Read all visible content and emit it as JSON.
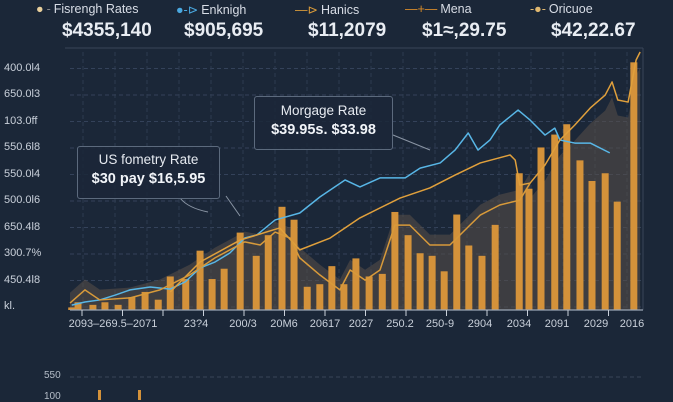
{
  "legend": [
    {
      "label": "Fisrengh Rates",
      "marker": "dot",
      "color": "#e8cf9c"
    },
    {
      "label": "Enknigh",
      "marker": "dot-arrow",
      "color": "#4aa8e0"
    },
    {
      "label": "Hanics",
      "marker": "line-arrow",
      "color": "#d89a3a"
    },
    {
      "label": "Mena",
      "marker": "plus",
      "color": "#d98c2a"
    },
    {
      "label": "Oricuoe",
      "marker": "dot-line",
      "color": "#e0b870"
    }
  ],
  "kpis": [
    "$4355,140",
    "$905,695",
    "$11,2079",
    "$1≈,29.75",
    "$42,22.67"
  ],
  "annotations": [
    {
      "title": "US fometry Rate",
      "value": "$30 pay $16,5.95"
    },
    {
      "title": "Morgage Rate",
      "value": "$39.95s. $33.98"
    }
  ],
  "colors": {
    "background": "#1b2738",
    "bar": "#d4923a",
    "blue_line": "#58b6e6",
    "orange_line": "#e0a03c",
    "area": "#5a5048"
  },
  "chart_data": {
    "type": "bar+line",
    "ylim": [
      0,
      100
    ],
    "xlim": [
      0,
      100
    ],
    "grid": true,
    "legend_position": "top",
    "y_tick_labels": [
      "kl.",
      "450.4l8",
      "300.7%",
      "650.4l8",
      "500.0l6",
      "550.0l4",
      "550.6l8",
      "103.0ff",
      "650.0l3",
      "400.0l4"
    ],
    "x_tick_labels": [
      "2093–269.5–2071",
      "23?4",
      "200/3",
      "20M6",
      "20617",
      "2027",
      "250.2",
      "250-9",
      "2904",
      "2034",
      "2091",
      "2029",
      "2016"
    ],
    "bars": [
      [
        0.3,
        1
      ],
      [
        1.4,
        3
      ],
      [
        4,
        2
      ],
      [
        6.1,
        3
      ],
      [
        8.4,
        2
      ],
      [
        10.8,
        5
      ],
      [
        13.1,
        7
      ],
      [
        15.4,
        4
      ],
      [
        17.5,
        13
      ],
      [
        20.2,
        12
      ],
      [
        22.7,
        23
      ],
      [
        24.8,
        12
      ],
      [
        26.9,
        16
      ],
      [
        29.7,
        30
      ],
      [
        32.5,
        21
      ],
      [
        34.6,
        29
      ],
      [
        37,
        40
      ],
      [
        39.1,
        35
      ],
      [
        41.4,
        9
      ],
      [
        43.6,
        10
      ],
      [
        45.7,
        17
      ],
      [
        47.8,
        10
      ],
      [
        49.9,
        20
      ],
      [
        52.2,
        13
      ],
      [
        54.5,
        14
      ],
      [
        56.7,
        38
      ],
      [
        59,
        29
      ],
      [
        61.1,
        22
      ],
      [
        63.2,
        21
      ],
      [
        65.3,
        15
      ],
      [
        67.5,
        37
      ],
      [
        69.6,
        25
      ],
      [
        71.9,
        21
      ],
      [
        74.2,
        33
      ],
      [
        78.4,
        53
      ],
      [
        80.1,
        47
      ],
      [
        82.2,
        63
      ],
      [
        84.6,
        68
      ],
      [
        86.7,
        72
      ],
      [
        89,
        58
      ],
      [
        91.1,
        50
      ],
      [
        93.4,
        53
      ],
      [
        95.5,
        42
      ],
      [
        98.4,
        96
      ]
    ],
    "series": [
      {
        "color": "#58b6e6",
        "points": [
          [
            0.3,
            1.9
          ],
          [
            2.6,
            3.1
          ],
          [
            5.2,
            3.9
          ],
          [
            7.9,
            5.8
          ],
          [
            10.5,
            7.8
          ],
          [
            14,
            8.9
          ],
          [
            17.5,
            8.1
          ],
          [
            20.1,
            10.9
          ],
          [
            22.7,
            16.3
          ],
          [
            25.3,
            18.6
          ],
          [
            27.9,
            22.1
          ],
          [
            30.5,
            27.9
          ],
          [
            32.6,
            29.1
          ],
          [
            35.8,
            34.9
          ],
          [
            40.1,
            37.6
          ],
          [
            43.6,
            43.8
          ],
          [
            48,
            50.4
          ],
          [
            50.6,
            47.7
          ],
          [
            54.1,
            51.2
          ],
          [
            58.5,
            51.2
          ],
          [
            61.1,
            55
          ],
          [
            64.6,
            57
          ],
          [
            67.2,
            62
          ],
          [
            69.5,
            68.6
          ],
          [
            71.2,
            62
          ],
          [
            73.3,
            65.9
          ],
          [
            75,
            71.7
          ],
          [
            78.2,
            77.5
          ],
          [
            80.3,
            73.6
          ],
          [
            82.9,
            67.8
          ],
          [
            84.6,
            70.5
          ],
          [
            85.5,
            65.9
          ],
          [
            88.1,
            64.7
          ],
          [
            90.8,
            64.7
          ],
          [
            94.2,
            60.9
          ]
        ]
      },
      {
        "color": "#e0a03c",
        "points": [
          [
            17.5,
            7
          ],
          [
            22.7,
            18.6
          ],
          [
            29.7,
            27.1
          ],
          [
            36.6,
            31.8
          ],
          [
            40.1,
            23.3
          ],
          [
            45.4,
            27.9
          ],
          [
            50.6,
            35.7
          ],
          [
            57.6,
            43.4
          ],
          [
            62.8,
            47.3
          ],
          [
            67.2,
            52.3
          ],
          [
            71.6,
            57
          ],
          [
            76.8,
            60.1
          ],
          [
            77.7,
            58.1
          ],
          [
            78.5,
            48.4
          ],
          [
            80.3,
            49.2
          ],
          [
            82.9,
            56.2
          ],
          [
            85.5,
            65.9
          ],
          [
            88.1,
            71.7
          ],
          [
            90.8,
            78.3
          ],
          [
            93.4,
            83.3
          ],
          [
            94.6,
            88.4
          ],
          [
            95.6,
            81.4
          ],
          [
            97.4,
            80.6
          ],
          [
            98.8,
            96.9
          ],
          [
            99.5,
            100
          ]
        ]
      },
      {
        "color": "#d89a3a",
        "points": [
          [
            0,
            2.7
          ],
          [
            2.6,
            7.8
          ],
          [
            5.2,
            3.9
          ],
          [
            10.5,
            4.7
          ],
          [
            15.7,
            7.8
          ],
          [
            20.9,
            13.6
          ],
          [
            25.3,
            20.2
          ],
          [
            30.5,
            26.4
          ],
          [
            33.2,
            25.2
          ],
          [
            35.8,
            30.2
          ],
          [
            38.4,
            27.9
          ],
          [
            40.1,
            20.2
          ],
          [
            43.6,
            13.6
          ],
          [
            47.1,
            7.8
          ],
          [
            48.9,
            15.5
          ],
          [
            51.5,
            11.6
          ],
          [
            54.1,
            15.5
          ],
          [
            56.7,
            32.9
          ],
          [
            59.3,
            32.9
          ],
          [
            62.8,
            25.2
          ],
          [
            66.3,
            25.2
          ],
          [
            69.8,
            32.9
          ],
          [
            71.6,
            36.8
          ],
          [
            75,
            40.7
          ],
          [
            78.5,
            42.6
          ],
          [
            80.3,
            49.2
          ]
        ]
      }
    ]
  },
  "mini_chart": {
    "y_tick_labels": [
      "550",
      "100"
    ]
  }
}
